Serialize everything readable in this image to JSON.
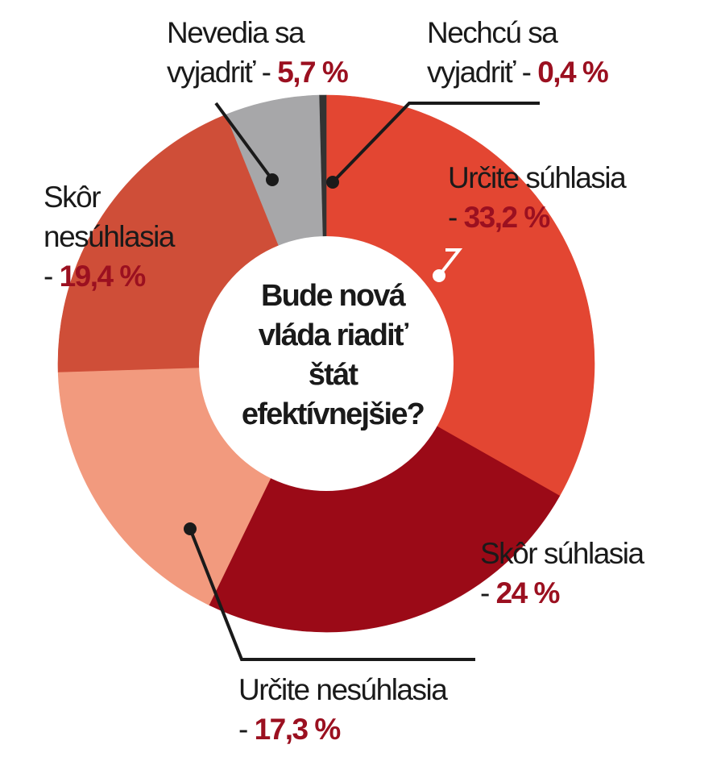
{
  "chart_data": {
    "type": "pie",
    "title": "Bude nová vláda riadiť štát efektívnejšie?",
    "title_lines": [
      "Bude nová",
      "vláda riadiť",
      "štát",
      "efektívnejšie?"
    ],
    "slices": [
      {
        "name_lines": [
          "Určite súhlasia"
        ],
        "value": 33.2,
        "value_label": "33,2 %",
        "color": "#e34632"
      },
      {
        "name_lines": [
          "Skôr súhlasia"
        ],
        "value": 24,
        "value_label": "24 %",
        "color": "#9b0a17"
      },
      {
        "name_lines": [
          "Určite nesúhlasia"
        ],
        "value": 17.3,
        "value_label": "17,3 %",
        "color": "#f29a7e"
      },
      {
        "name_lines": [
          "Skôr",
          "nesúhlasia"
        ],
        "value": 19.4,
        "value_label": "19,4 %",
        "color": "#cf4e38"
      },
      {
        "name_lines": [
          "Nevedia sa",
          "vyjadriť"
        ],
        "value": 5.7,
        "value_label": "5,7 %",
        "color": "#a7a7a9"
      },
      {
        "name_lines": [
          "Nechcú sa",
          "vyjadriť"
        ],
        "value": 0.4,
        "value_label": "0,4 %",
        "color": "#333333"
      }
    ],
    "legend": "none"
  }
}
